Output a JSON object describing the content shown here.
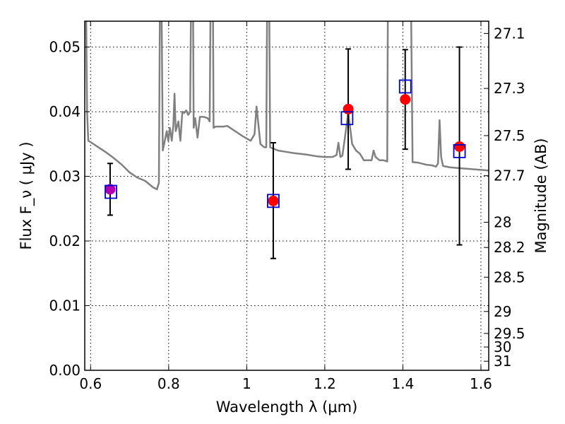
{
  "chart_data": {
    "type": "scatter",
    "title": "",
    "xlabel": "Wavelength  λ (μm)",
    "ylabel": "Flux  F_ν  ( μJy )",
    "y2label": "Magnitude (AB)",
    "xlim": [
      0.585,
      1.62
    ],
    "ylim": [
      0.0,
      0.054
    ],
    "grid": true,
    "x_ticks": [
      0.6,
      0.8,
      1.0,
      1.2,
      1.4,
      1.6
    ],
    "x_tick_labels": [
      "0.6",
      "0.8",
      "1",
      "1.2",
      "1.4",
      "1.6"
    ],
    "y_ticks": [
      0.0,
      0.01,
      0.02,
      0.03,
      0.04,
      0.05
    ],
    "y_tick_labels": [
      "0.00",
      "0.01",
      "0.02",
      "0.03",
      "0.04",
      "0.05"
    ],
    "y2_ticks": [
      {
        "label": "27.1",
        "flux": 0.0521
      },
      {
        "label": "27.3",
        "flux": 0.0436
      },
      {
        "label": "27.5",
        "flux": 0.0363
      },
      {
        "label": "27.7",
        "flux": 0.0301
      },
      {
        "label": "28",
        "flux": 0.0229
      },
      {
        "label": "28.2",
        "flux": 0.019
      },
      {
        "label": "28.5",
        "flux": 0.0144
      },
      {
        "label": "29",
        "flux": 0.0091
      },
      {
        "label": "29.5",
        "flux": 0.0057
      },
      {
        "label": "30",
        "flux": 0.0036
      },
      {
        "label": "31",
        "flux": 0.0014
      }
    ],
    "colors": {
      "template": "#808080",
      "observed": "#ff0000",
      "model": "#0000cc",
      "errorbar": "#000000",
      "first_point": "#b000b0"
    },
    "series": [
      {
        "kind": "line",
        "points": [
          [
            0.585,
            0.06
          ],
          [
            0.588,
            0.058
          ],
          [
            0.591,
            0.04
          ],
          [
            0.594,
            0.0355
          ],
          [
            0.6,
            0.0353
          ],
          [
            0.62,
            0.0345
          ],
          [
            0.64,
            0.0337
          ],
          [
            0.66,
            0.0328
          ],
          [
            0.68,
            0.0318
          ],
          [
            0.7,
            0.0306
          ],
          [
            0.72,
            0.0298
          ],
          [
            0.74,
            0.0293
          ],
          [
            0.76,
            0.0283
          ],
          [
            0.77,
            0.028
          ],
          [
            0.775,
            0.029
          ],
          [
            0.778,
            0.062
          ],
          [
            0.781,
            0.062
          ],
          [
            0.785,
            0.034
          ],
          [
            0.79,
            0.0355
          ],
          [
            0.795,
            0.037
          ],
          [
            0.799,
            0.0355
          ],
          [
            0.803,
            0.0375
          ],
          [
            0.808,
            0.0355
          ],
          [
            0.812,
            0.038
          ],
          [
            0.815,
            0.0428
          ],
          [
            0.818,
            0.037
          ],
          [
            0.825,
            0.0385
          ],
          [
            0.83,
            0.0355
          ],
          [
            0.835,
            0.04
          ],
          [
            0.84,
            0.0398
          ],
          [
            0.845,
            0.0402
          ],
          [
            0.85,
            0.0395
          ],
          [
            0.855,
            0.04
          ],
          [
            0.858,
            0.062
          ],
          [
            0.862,
            0.062
          ],
          [
            0.864,
            0.0375
          ],
          [
            0.868,
            0.039
          ],
          [
            0.874,
            0.036
          ],
          [
            0.88,
            0.0392
          ],
          [
            0.89,
            0.0392
          ],
          [
            0.9,
            0.039
          ],
          [
            0.905,
            0.0385
          ],
          [
            0.908,
            0.062
          ],
          [
            0.913,
            0.062
          ],
          [
            0.915,
            0.0375
          ],
          [
            0.92,
            0.0377
          ],
          [
            0.94,
            0.0377
          ],
          [
            0.95,
            0.0378
          ],
          [
            0.97,
            0.037
          ],
          [
            0.99,
            0.0362
          ],
          [
            1.01,
            0.0355
          ],
          [
            1.02,
            0.0365
          ],
          [
            1.025,
            0.0408
          ],
          [
            1.03,
            0.038
          ],
          [
            1.035,
            0.035
          ],
          [
            1.045,
            0.0345
          ],
          [
            1.05,
            0.0345
          ],
          [
            1.053,
            0.062
          ],
          [
            1.057,
            0.062
          ],
          [
            1.06,
            0.0345
          ],
          [
            1.08,
            0.034
          ],
          [
            1.1,
            0.0338
          ],
          [
            1.12,
            0.0336
          ],
          [
            1.15,
            0.0334
          ],
          [
            1.18,
            0.0331
          ],
          [
            1.2,
            0.033
          ],
          [
            1.22,
            0.033
          ],
          [
            1.23,
            0.0333
          ],
          [
            1.235,
            0.0352
          ],
          [
            1.24,
            0.033
          ],
          [
            1.245,
            0.0332
          ],
          [
            1.255,
            0.0375
          ],
          [
            1.26,
            0.04
          ],
          [
            1.265,
            0.0375
          ],
          [
            1.27,
            0.035
          ],
          [
            1.28,
            0.034
          ],
          [
            1.29,
            0.0335
          ],
          [
            1.3,
            0.0325
          ],
          [
            1.31,
            0.0325
          ],
          [
            1.32,
            0.0325
          ],
          [
            1.325,
            0.034
          ],
          [
            1.33,
            0.033
          ],
          [
            1.34,
            0.0325
          ],
          [
            1.35,
            0.0325
          ],
          [
            1.36,
            0.0323
          ],
          [
            1.362,
            0.062
          ],
          [
            1.4,
            0.062
          ],
          [
            1.401,
            0.0545
          ],
          [
            1.402,
            0.062
          ],
          [
            1.42,
            0.062
          ],
          [
            1.425,
            0.0322
          ],
          [
            1.44,
            0.0321
          ],
          [
            1.46,
            0.0318
          ],
          [
            1.475,
            0.0317
          ],
          [
            1.485,
            0.0315
          ],
          [
            1.49,
            0.032
          ],
          [
            1.494,
            0.0387
          ],
          [
            1.498,
            0.033
          ],
          [
            1.503,
            0.0316
          ],
          [
            1.52,
            0.0314
          ],
          [
            1.54,
            0.0313
          ],
          [
            1.56,
            0.0312
          ],
          [
            1.58,
            0.0311
          ],
          [
            1.6,
            0.031
          ],
          [
            1.62,
            0.0309
          ]
        ]
      },
      {
        "kind": "errorbar",
        "points": [
          {
            "x": 0.65,
            "y": 0.028,
            "lo": 0.024,
            "hi": 0.032
          },
          {
            "x": 1.068,
            "y": 0.0262,
            "lo": 0.0173,
            "hi": 0.0352
          },
          {
            "x": 1.26,
            "y": 0.0404,
            "lo": 0.0311,
            "hi": 0.0497
          },
          {
            "x": 1.406,
            "y": 0.0419,
            "lo": 0.0342,
            "hi": 0.0496
          },
          {
            "x": 1.545,
            "y": 0.0346,
            "lo": 0.0194,
            "hi": 0.05
          }
        ]
      },
      {
        "kind": "model_box",
        "points": [
          {
            "x": 0.652,
            "y": 0.0276
          },
          {
            "x": 1.068,
            "y": 0.0262
          },
          {
            "x": 1.257,
            "y": 0.039
          },
          {
            "x": 1.406,
            "y": 0.0439
          },
          {
            "x": 1.545,
            "y": 0.0339
          }
        ]
      }
    ]
  }
}
